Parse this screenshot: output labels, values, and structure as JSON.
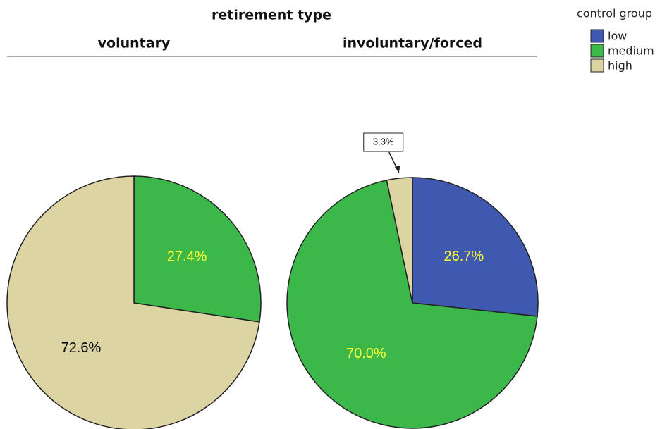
{
  "header": {
    "title": "retirement type",
    "legend_title": "control group"
  },
  "chart_data": [
    {
      "type": "pie",
      "title": "voluntary",
      "categories": [
        "medium",
        "high"
      ],
      "values": [
        27.4,
        72.6
      ],
      "value_labels": [
        "27.4%",
        "72.6%"
      ],
      "colors": [
        "#3cb84a",
        "#dcd4a3"
      ],
      "label_colors": [
        "#ffff33",
        "#000000"
      ]
    },
    {
      "type": "pie",
      "title": "involuntary/forced",
      "categories": [
        "low",
        "medium",
        "high"
      ],
      "values": [
        26.7,
        70.0,
        3.3
      ],
      "value_labels": [
        "26.7%",
        "70.0%",
        "3.3%"
      ],
      "colors": [
        "#3f58b0",
        "#3cb84a",
        "#dcd4a3"
      ],
      "label_colors": [
        "#ffff33",
        "#ffff33",
        "#000000"
      ]
    }
  ]
}
